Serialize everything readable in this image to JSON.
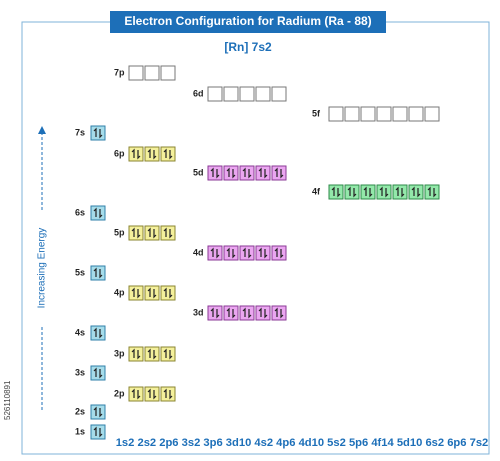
{
  "header": {
    "title": "Electron Configuration for Radium (Ra - 88)",
    "subtitle": "[Rn] 7s2"
  },
  "axis_label": "Increasing Energy",
  "orbitals": [
    {
      "label": "7p",
      "boxes": 3,
      "filled": false
    },
    {
      "label": "6d",
      "boxes": 5,
      "filled": false
    },
    {
      "label": "5f",
      "boxes": 7,
      "filled": false
    },
    {
      "label": "7s",
      "boxes": 1,
      "filled": true
    },
    {
      "label": "6p",
      "boxes": 3,
      "filled": true
    },
    {
      "label": "5d",
      "boxes": 5,
      "filled": true
    },
    {
      "label": "4f",
      "boxes": 7,
      "filled": true
    },
    {
      "label": "6s",
      "boxes": 1,
      "filled": true
    },
    {
      "label": "5p",
      "boxes": 3,
      "filled": true
    },
    {
      "label": "4d",
      "boxes": 5,
      "filled": true
    },
    {
      "label": "5s",
      "boxes": 1,
      "filled": true
    },
    {
      "label": "4p",
      "boxes": 3,
      "filled": true
    },
    {
      "label": "3d",
      "boxes": 5,
      "filled": true
    },
    {
      "label": "4s",
      "boxes": 1,
      "filled": true
    },
    {
      "label": "3p",
      "boxes": 3,
      "filled": true
    },
    {
      "label": "3s",
      "boxes": 1,
      "filled": true
    },
    {
      "label": "2p",
      "boxes": 3,
      "filled": true
    },
    {
      "label": "2s",
      "boxes": 1,
      "filled": true
    },
    {
      "label": "1s",
      "boxes": 1,
      "filled": true
    }
  ],
  "configuration": "1s2 2s2 2p6 3s2 3p6 3d10 4s2 4p6 4d10 5s2 5p6 4f14 5d10 6s2 6p6 7s2",
  "stock_id": "526110891"
}
